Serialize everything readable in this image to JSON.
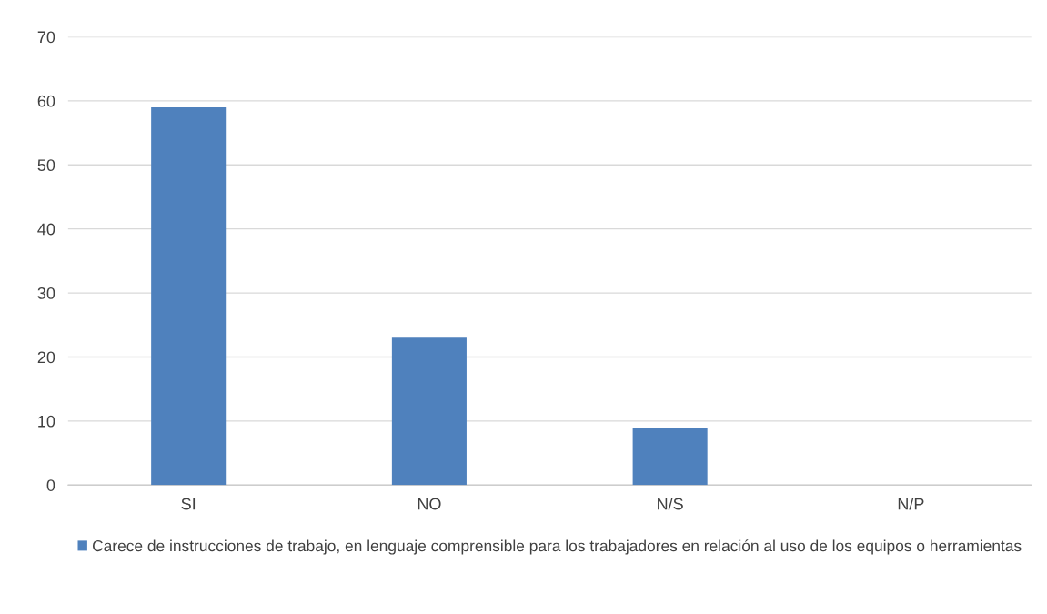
{
  "chart_data": {
    "type": "bar",
    "categories": [
      "SI",
      "NO",
      "N/S",
      "N/P"
    ],
    "series": [
      {
        "name": "Carece de instrucciones de trabajo, en lenguaje comprensible para los trabajadores en relación al uso de los equipos o herramientas",
        "color": "#4f81bd",
        "values": [
          59,
          23,
          9,
          0
        ]
      }
    ],
    "ylim": [
      0,
      70
    ],
    "yticks": [
      0,
      10,
      20,
      30,
      40,
      50,
      60,
      70
    ],
    "grid": "y",
    "legend": "bottom"
  }
}
